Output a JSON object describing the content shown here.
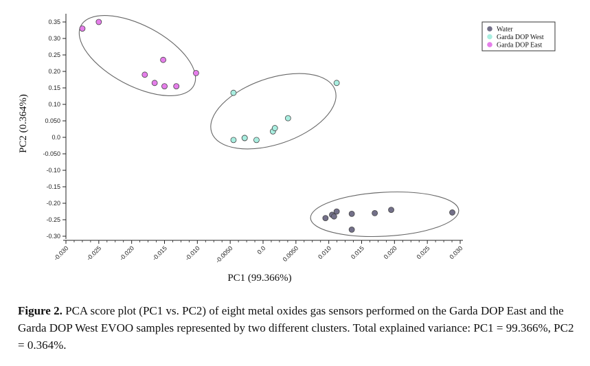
{
  "chart_data": {
    "type": "scatter",
    "xlabel": "PC1 (99.366%)",
    "ylabel": "PC2 (0.364%)",
    "xlim": [
      -0.03,
      0.03
    ],
    "ylim": [
      -0.3,
      0.35
    ],
    "x_ticks": [
      {
        "value": -0.03,
        "label": "-0.030"
      },
      {
        "value": -0.025,
        "label": "-0.025"
      },
      {
        "value": -0.02,
        "label": "-0.020"
      },
      {
        "value": -0.015,
        "label": "-0.015"
      },
      {
        "value": -0.01,
        "label": "-0.010"
      },
      {
        "value": -0.005,
        "label": "-0.0050"
      },
      {
        "value": 0.0,
        "label": "0.0"
      },
      {
        "value": 0.005,
        "label": "0.0050"
      },
      {
        "value": 0.01,
        "label": "0.010"
      },
      {
        "value": 0.015,
        "label": "0.015"
      },
      {
        "value": 0.02,
        "label": "0.020"
      },
      {
        "value": 0.025,
        "label": "0.025"
      },
      {
        "value": 0.03,
        "label": "0.030"
      }
    ],
    "y_ticks": [
      {
        "value": 0.35,
        "label": "0.35"
      },
      {
        "value": 0.3,
        "label": "0.30"
      },
      {
        "value": 0.25,
        "label": "0.25"
      },
      {
        "value": 0.2,
        "label": "0.20"
      },
      {
        "value": 0.15,
        "label": "0.15"
      },
      {
        "value": 0.1,
        "label": "0.10"
      },
      {
        "value": 0.05,
        "label": "0.050"
      },
      {
        "value": 0.0,
        "label": "0.0"
      },
      {
        "value": -0.05,
        "label": "-0.050"
      },
      {
        "value": -0.1,
        "label": "-0.10"
      },
      {
        "value": -0.15,
        "label": "-0.15"
      },
      {
        "value": -0.2,
        "label": "-0.20"
      },
      {
        "value": -0.25,
        "label": "-0.25"
      },
      {
        "value": -0.3,
        "label": "-0.30"
      }
    ],
    "legend_position": "top-right",
    "series": [
      {
        "name": "Water",
        "color": "#737089",
        "points": [
          [
            0.0095,
            -0.245
          ],
          [
            0.0105,
            -0.235
          ],
          [
            0.0108,
            -0.24
          ],
          [
            0.0112,
            -0.225
          ],
          [
            0.0135,
            -0.232
          ],
          [
            0.0135,
            -0.28
          ],
          [
            0.017,
            -0.23
          ],
          [
            0.0195,
            -0.22
          ],
          [
            0.0288,
            -0.228
          ]
        ]
      },
      {
        "name": "Garda DOP West",
        "color": "#a9eee0",
        "points": [
          [
            -0.0045,
            0.135
          ],
          [
            -0.0045,
            -0.008
          ],
          [
            -0.0028,
            -0.002
          ],
          [
            -0.0028,
            -0.002
          ],
          [
            -0.001,
            -0.008
          ],
          [
            0.0015,
            0.018
          ],
          [
            0.0018,
            0.028
          ],
          [
            0.0038,
            0.058
          ],
          [
            0.0112,
            0.165
          ]
        ]
      },
      {
        "name": "Garda DOP East",
        "color": "#e57eea",
        "points": [
          [
            -0.0275,
            0.33
          ],
          [
            -0.025,
            0.35
          ],
          [
            -0.018,
            0.19
          ],
          [
            -0.0165,
            0.165
          ],
          [
            -0.0152,
            0.235
          ],
          [
            -0.015,
            0.155
          ],
          [
            -0.0132,
            0.155
          ],
          [
            -0.0102,
            0.195
          ]
        ]
      }
    ]
  },
  "caption": {
    "label": "Figure 2.",
    "text": " PCA score plot (PC1 vs. PC2) of eight metal oxides gas sensors performed on the Garda DOP East and the Garda DOP West EVOO samples represented by two different clusters. Total explained variance: PC1 = 99.366%, PC2 = 0.364%."
  }
}
